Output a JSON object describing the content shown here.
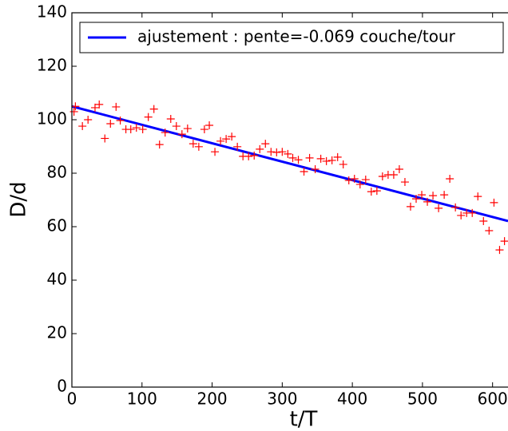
{
  "chart_data": {
    "type": "scatter",
    "xlabel": "t/T",
    "ylabel": "D/d",
    "xlim": [
      0,
      622
    ],
    "ylim": [
      0,
      140
    ],
    "xticks": [
      0,
      100,
      200,
      300,
      400,
      500,
      600
    ],
    "yticks": [
      0,
      20,
      40,
      60,
      80,
      100,
      120,
      140
    ],
    "legend": "upper right",
    "series": [
      {
        "name": "ajustement : pente=-0.069 couche/tour",
        "type": "line",
        "color": "#0000ff",
        "x": [
          0,
          622
        ],
        "values": [
          105,
          62.1
        ]
      },
      {
        "type": "scatter",
        "marker": "+",
        "color": "#ff0000",
        "x": [
          3,
          5,
          15,
          23,
          33,
          39,
          47,
          55,
          63,
          69,
          77,
          84,
          92,
          101,
          109,
          117,
          125,
          133,
          141,
          149,
          157,
          165,
          173,
          181,
          189,
          196,
          204,
          212,
          220,
          228,
          236,
          244,
          252,
          260,
          268,
          276,
          284,
          292,
          300,
          308,
          315,
          323,
          331,
          339,
          347,
          355,
          363,
          371,
          379,
          387,
          395,
          403,
          411,
          419,
          427,
          435,
          443,
          451,
          459,
          467,
          475,
          483,
          491,
          499,
          507,
          515,
          523,
          531,
          539,
          547,
          555,
          563,
          571,
          579,
          587,
          595,
          602,
          610,
          617
        ],
        "values": [
          103,
          105,
          97.6,
          100,
          104.5,
          105.7,
          93,
          98.5,
          104.8,
          99.7,
          96.4,
          96.4,
          97,
          96.4,
          101,
          104,
          90.7,
          95.2,
          100.3,
          97.6,
          94.6,
          96.7,
          91,
          89.9,
          96.4,
          97.9,
          88,
          92,
          92.8,
          93.7,
          89.9,
          86.3,
          86.3,
          86.6,
          89,
          91,
          88,
          87.8,
          88,
          87.2,
          85.7,
          85,
          80.6,
          85.7,
          81.5,
          85.4,
          84.5,
          84.8,
          86,
          83.3,
          77.3,
          77.9,
          75.8,
          77.6,
          73.1,
          73.4,
          78.8,
          79.4,
          79.4,
          81.5,
          76.7,
          67.5,
          70.4,
          71.9,
          69.3,
          71.6,
          66.9,
          71.9,
          77.9,
          67.2,
          64.2,
          65.1,
          65.1,
          71.3,
          62.1,
          58.5,
          69,
          51.3,
          54.6
        ]
      }
    ]
  }
}
